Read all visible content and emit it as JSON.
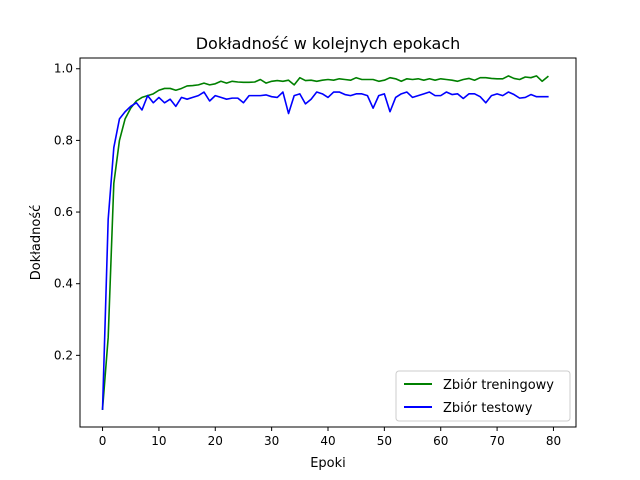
{
  "chart_data": {
    "type": "line",
    "title": "Dokładność w kolejnych epokach",
    "xlabel": "Epoki",
    "ylabel": "Dokładność",
    "xlim": [
      -4,
      84
    ],
    "ylim": [
      0.0,
      1.03
    ],
    "xticks": [
      0,
      10,
      20,
      30,
      40,
      50,
      60,
      70,
      80
    ],
    "yticks": [
      0.2,
      0.4,
      0.6,
      0.8,
      1.0
    ],
    "ytick_labels": [
      "0.2",
      "0.4",
      "0.6",
      "0.8",
      "1.0"
    ],
    "grid": false,
    "legend_position": "lower-right",
    "series": [
      {
        "name": "Zbiór treningowy",
        "color": "#008000",
        "x": [
          0,
          1,
          2,
          3,
          4,
          5,
          6,
          7,
          8,
          9,
          10,
          11,
          12,
          13,
          14,
          15,
          16,
          17,
          18,
          19,
          20,
          21,
          22,
          23,
          24,
          25,
          26,
          27,
          28,
          29,
          30,
          31,
          32,
          33,
          34,
          35,
          36,
          37,
          38,
          39,
          40,
          41,
          42,
          43,
          44,
          45,
          46,
          47,
          48,
          49,
          50,
          51,
          52,
          53,
          54,
          55,
          56,
          57,
          58,
          59,
          60,
          61,
          62,
          63,
          64,
          65,
          66,
          67,
          68,
          69,
          70,
          71,
          72,
          73,
          74,
          75,
          76,
          77,
          78,
          79
        ],
        "values": [
          0.05,
          0.25,
          0.68,
          0.8,
          0.86,
          0.89,
          0.91,
          0.92,
          0.925,
          0.93,
          0.94,
          0.945,
          0.945,
          0.94,
          0.945,
          0.952,
          0.953,
          0.955,
          0.96,
          0.955,
          0.958,
          0.965,
          0.96,
          0.965,
          0.963,
          0.962,
          0.962,
          0.963,
          0.97,
          0.96,
          0.965,
          0.967,
          0.965,
          0.968,
          0.955,
          0.975,
          0.967,
          0.968,
          0.965,
          0.968,
          0.97,
          0.968,
          0.972,
          0.97,
          0.968,
          0.975,
          0.97,
          0.97,
          0.97,
          0.965,
          0.968,
          0.975,
          0.972,
          0.965,
          0.972,
          0.97,
          0.972,
          0.968,
          0.972,
          0.968,
          0.972,
          0.97,
          0.968,
          0.965,
          0.97,
          0.973,
          0.968,
          0.975,
          0.975,
          0.973,
          0.972,
          0.972,
          0.98,
          0.973,
          0.97,
          0.977,
          0.975,
          0.98,
          0.965,
          0.978
        ]
      },
      {
        "name": "Zbiór testowy",
        "color": "#0000ff",
        "x": [
          0,
          1,
          2,
          3,
          4,
          5,
          6,
          7,
          8,
          9,
          10,
          11,
          12,
          13,
          14,
          15,
          16,
          17,
          18,
          19,
          20,
          21,
          22,
          23,
          24,
          25,
          26,
          27,
          28,
          29,
          30,
          31,
          32,
          33,
          34,
          35,
          36,
          37,
          38,
          39,
          40,
          41,
          42,
          43,
          44,
          45,
          46,
          47,
          48,
          49,
          50,
          51,
          52,
          53,
          54,
          55,
          56,
          57,
          58,
          59,
          60,
          61,
          62,
          63,
          64,
          65,
          66,
          67,
          68,
          69,
          70,
          71,
          72,
          73,
          74,
          75,
          76,
          77,
          78,
          79
        ],
        "values": [
          0.05,
          0.58,
          0.78,
          0.86,
          0.88,
          0.895,
          0.905,
          0.885,
          0.925,
          0.905,
          0.92,
          0.905,
          0.915,
          0.895,
          0.92,
          0.915,
          0.92,
          0.925,
          0.935,
          0.91,
          0.925,
          0.92,
          0.915,
          0.918,
          0.918,
          0.905,
          0.925,
          0.925,
          0.925,
          0.927,
          0.922,
          0.92,
          0.935,
          0.875,
          0.925,
          0.93,
          0.902,
          0.915,
          0.935,
          0.93,
          0.92,
          0.935,
          0.935,
          0.928,
          0.925,
          0.93,
          0.93,
          0.925,
          0.89,
          0.925,
          0.93,
          0.88,
          0.92,
          0.93,
          0.935,
          0.92,
          0.925,
          0.93,
          0.935,
          0.925,
          0.925,
          0.935,
          0.928,
          0.93,
          0.917,
          0.93,
          0.93,
          0.922,
          0.905,
          0.925,
          0.93,
          0.925,
          0.935,
          0.928,
          0.918,
          0.92,
          0.928,
          0.922,
          0.922,
          0.922
        ]
      }
    ]
  }
}
